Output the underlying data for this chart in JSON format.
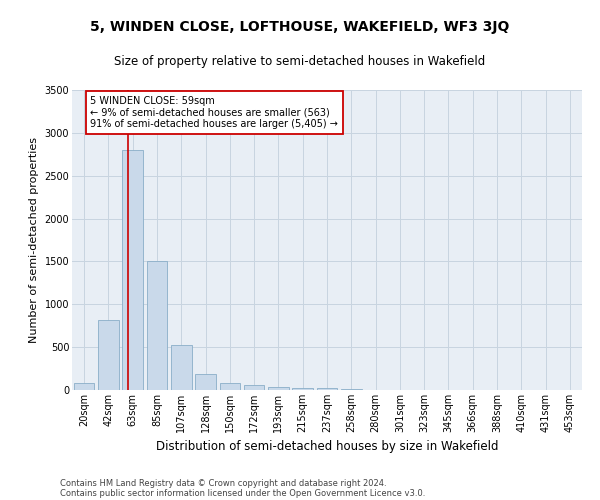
{
  "title": "5, WINDEN CLOSE, LOFTHOUSE, WAKEFIELD, WF3 3JQ",
  "subtitle": "Size of property relative to semi-detached houses in Wakefield",
  "xlabel": "Distribution of semi-detached houses by size in Wakefield",
  "ylabel": "Number of semi-detached properties",
  "footer1": "Contains HM Land Registry data © Crown copyright and database right 2024.",
  "footer2": "Contains public sector information licensed under the Open Government Licence v3.0.",
  "annotation_title": "5 WINDEN CLOSE: 59sqm",
  "annotation_line1": "← 9% of semi-detached houses are smaller (563)",
  "annotation_line2": "91% of semi-detached houses are larger (5,405) →",
  "property_size": 59,
  "bar_color": "#c9d9ea",
  "bar_edge_color": "#8aaec8",
  "vline_color": "#cc0000",
  "annotation_box_color": "#ffffff",
  "annotation_box_edge": "#cc0000",
  "background_color": "#ffffff",
  "grid_color": "#c8d4e0",
  "ax_bg_color": "#e8eef5",
  "categories": [
    "20sqm",
    "42sqm",
    "63sqm",
    "85sqm",
    "107sqm",
    "128sqm",
    "150sqm",
    "172sqm",
    "193sqm",
    "215sqm",
    "237sqm",
    "258sqm",
    "280sqm",
    "301sqm",
    "323sqm",
    "345sqm",
    "366sqm",
    "388sqm",
    "410sqm",
    "431sqm",
    "453sqm"
  ],
  "values": [
    80,
    820,
    2800,
    1500,
    530,
    185,
    80,
    55,
    40,
    28,
    18,
    8,
    5,
    3,
    2,
    1,
    1,
    1,
    0,
    0,
    0
  ],
  "ylim": [
    0,
    3500
  ],
  "yticks": [
    0,
    500,
    1000,
    1500,
    2000,
    2500,
    3000,
    3500
  ],
  "title_fontsize": 10,
  "subtitle_fontsize": 8.5,
  "ylabel_fontsize": 8,
  "xlabel_fontsize": 8.5,
  "tick_fontsize": 7,
  "annotation_fontsize": 7,
  "footer_fontsize": 6
}
